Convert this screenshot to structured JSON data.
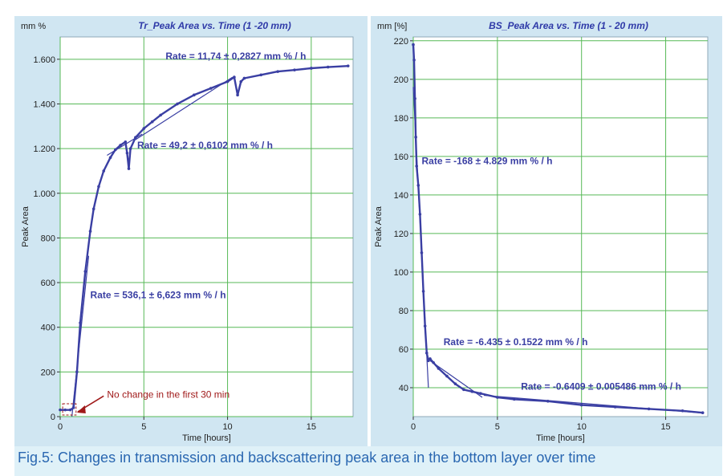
{
  "caption": "Fig.5: Changes in transmission and backscattering peak area in the bottom layer over time",
  "colors": {
    "panel_bg": "#d0e6f2",
    "plot_bg": "#ffffff",
    "grid": "#57b957",
    "series": "#3a3fa3",
    "title": "#2f3aa8",
    "annotation": "#3a3fa3",
    "callout": "#a01a1a"
  },
  "chart_data": [
    {
      "type": "scatter",
      "title": "Tr_Peak Area vs. Time (1 -20 mm)",
      "unit_label": "mm %",
      "xlabel": "Time [hours]",
      "ylabel": "Peak Area",
      "xlim": [
        0,
        17.5
      ],
      "ylim": [
        0,
        1700
      ],
      "x_ticks": [
        0,
        5,
        10,
        15
      ],
      "y_ticks": [
        0,
        200,
        400,
        600,
        800,
        1000,
        1200,
        1400,
        1600
      ],
      "y_tick_labels": [
        "0",
        "200",
        "400",
        "600",
        "800",
        "1.000",
        "1.200",
        "1.400",
        "1.600"
      ],
      "grid": true,
      "series": [
        {
          "x": [
            0,
            0.3,
            0.6,
            0.8,
            1.0,
            1.2,
            1.5,
            1.8,
            2.0,
            2.3,
            2.6,
            3.0,
            3.3,
            3.6,
            3.9,
            4.0,
            4.1,
            4.2,
            4.5,
            5.0,
            5.5,
            6.0,
            7.0,
            8.0,
            9.0,
            10.0,
            10.4,
            10.6,
            10.8,
            11.0,
            12.0,
            13.0,
            14.0,
            15.0,
            16.0,
            17.2
          ],
          "y": [
            30,
            30,
            30,
            40,
            200,
            420,
            650,
            830,
            930,
            1030,
            1100,
            1160,
            1195,
            1215,
            1230,
            1180,
            1110,
            1200,
            1250,
            1290,
            1320,
            1350,
            1400,
            1440,
            1470,
            1500,
            1520,
            1440,
            1500,
            1515,
            1530,
            1545,
            1552,
            1560,
            1565,
            1570
          ]
        }
      ],
      "trendlines": [
        {
          "label": "Rate = 536,1 ± 6,623 mm % / h",
          "x": [
            0.7,
            1.7
          ],
          "y": [
            0,
            720
          ]
        },
        {
          "label": "Rate = 49,2 ± 0,6102 mm % / h",
          "x": [
            2.8,
            4.9
          ],
          "y": [
            1170,
            1265
          ]
        },
        {
          "label": "Rate = 11,74 ± 0,2827 mm % / h",
          "x": [
            4.5,
            10.3
          ],
          "y": [
            1240,
            1520
          ]
        }
      ],
      "annotations": [
        {
          "text": "Rate = 11,74 ± 0,2827 mm % / h",
          "x": 6.3,
          "y": 1600
        },
        {
          "text": "Rate = 49,2 ± 0,6102 mm % / h",
          "x": 4.6,
          "y": 1200
        },
        {
          "text": "Rate = 536,1 ± 6,623 mm % / h",
          "x": 1.8,
          "y": 530
        }
      ],
      "callout": {
        "text": "No change in the first 30 min",
        "x": 2.8,
        "y": 85
      }
    },
    {
      "type": "scatter",
      "title": "BS_Peak Area vs. Time (1 - 20 mm)",
      "unit_label": "mm [%]",
      "xlabel": "Time [hours]",
      "ylabel": "Peak Area",
      "xlim": [
        0,
        17.5
      ],
      "ylim": [
        25,
        222
      ],
      "x_ticks": [
        0,
        5,
        10,
        15
      ],
      "y_ticks": [
        40,
        60,
        80,
        100,
        120,
        140,
        160,
        180,
        200,
        220
      ],
      "y_tick_labels": [
        "40",
        "60",
        "80",
        "100",
        "120",
        "140",
        "160",
        "180",
        "200",
        "220"
      ],
      "grid": true,
      "series": [
        {
          "x": [
            0,
            0.05,
            0.1,
            0.15,
            0.2,
            0.3,
            0.4,
            0.5,
            0.6,
            0.7,
            0.8,
            0.9,
            1.0,
            1.2,
            1.5,
            2.0,
            2.5,
            3.0,
            3.5,
            4.0,
            5.0,
            6.0,
            8.0,
            10.0,
            12.0,
            14.0,
            16.0,
            17.2
          ],
          "y": [
            218,
            210,
            190,
            170,
            155,
            145,
            130,
            110,
            90,
            72,
            58,
            54,
            55,
            53,
            50,
            46,
            42,
            39,
            38,
            37,
            35,
            34,
            33,
            31,
            30,
            29,
            28,
            27
          ]
        }
      ],
      "trendlines": [
        {
          "label": "Rate = -168 ± 4.829 mm % / h",
          "x": [
            0,
            0.9
          ],
          "y": [
            196,
            40
          ]
        },
        {
          "label": "Rate = -6.435 ± 0.1522 mm % / h",
          "x": [
            1.0,
            4.1
          ],
          "y": [
            54,
            35
          ]
        },
        {
          "label": "Rate = -0.6409 ± 0.005486 mm % / h",
          "x": [
            4.2,
            17.0
          ],
          "y": [
            36,
            27
          ]
        }
      ],
      "annotations": [
        {
          "text": "Rate = -168 ± 4.829 mm % / h",
          "x": 0.5,
          "y": 156
        },
        {
          "text": "Rate = -6.435 ± 0.1522 mm % / h",
          "x": 1.8,
          "y": 62
        },
        {
          "text": "Rate = -0.6409 ± 0.005486 mm % / h",
          "x": 6.4,
          "y": 39
        }
      ]
    }
  ]
}
